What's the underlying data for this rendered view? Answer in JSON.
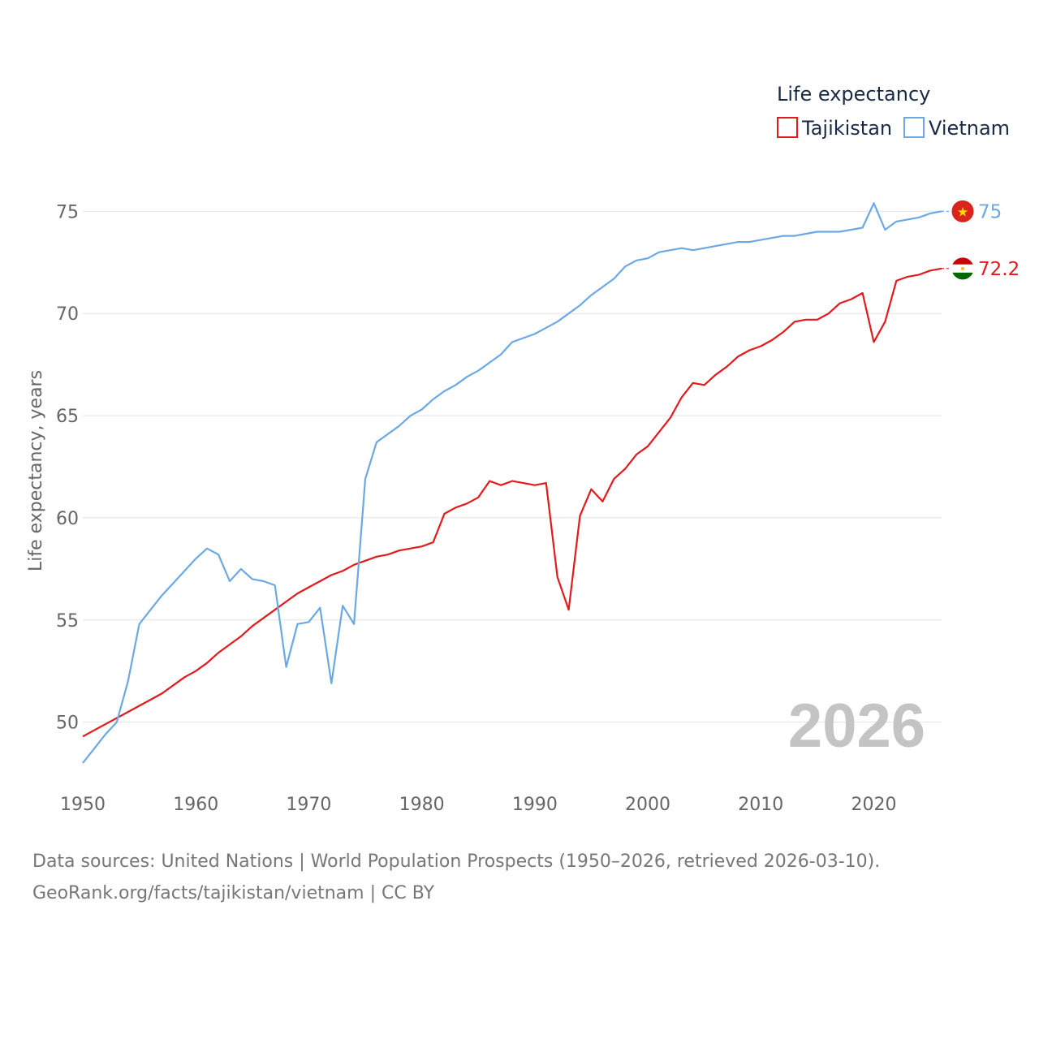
{
  "chart_data": {
    "type": "line",
    "ylabel": "Life expectancy, years",
    "xlabel": "",
    "legend_title": "Life expectancy",
    "legend_position": "top-right",
    "current_year_label": "2026",
    "xlim": [
      1950,
      2026
    ],
    "ylim": [
      48,
      77
    ],
    "y_ticks": [
      50,
      55,
      60,
      65,
      70,
      75
    ],
    "x_ticks": [
      1950,
      1960,
      1970,
      1980,
      1990,
      2000,
      2010,
      2020
    ],
    "grid": true,
    "x": [
      1950,
      1951,
      1952,
      1953,
      1954,
      1955,
      1956,
      1957,
      1958,
      1959,
      1960,
      1961,
      1962,
      1963,
      1964,
      1965,
      1966,
      1967,
      1968,
      1969,
      1970,
      1971,
      1972,
      1973,
      1974,
      1975,
      1976,
      1977,
      1978,
      1979,
      1980,
      1981,
      1982,
      1983,
      1984,
      1985,
      1986,
      1987,
      1988,
      1989,
      1990,
      1991,
      1992,
      1993,
      1994,
      1995,
      1996,
      1997,
      1998,
      1999,
      2000,
      2001,
      2002,
      2003,
      2004,
      2005,
      2006,
      2007,
      2008,
      2009,
      2010,
      2011,
      2012,
      2013,
      2014,
      2015,
      2016,
      2017,
      2018,
      2019,
      2020,
      2021,
      2022,
      2023,
      2024,
      2025,
      2026
    ],
    "series": [
      {
        "name": "Tajikistan",
        "color": "#e31a1c",
        "end_value_label": "72.2",
        "flag_icon": "flag-tajikistan-icon",
        "values": [
          49.3,
          49.6,
          49.9,
          50.2,
          50.5,
          50.8,
          51.1,
          51.4,
          51.8,
          52.2,
          52.5,
          52.9,
          53.4,
          53.8,
          54.2,
          54.7,
          55.1,
          55.5,
          55.9,
          56.3,
          56.6,
          56.9,
          57.2,
          57.4,
          57.7,
          57.9,
          58.1,
          58.2,
          58.4,
          58.5,
          58.6,
          58.8,
          60.2,
          60.5,
          60.7,
          61.0,
          61.8,
          61.6,
          61.8,
          61.7,
          61.6,
          61.7,
          57.1,
          55.5,
          60.1,
          61.4,
          60.8,
          61.9,
          62.4,
          63.1,
          63.5,
          64.2,
          64.9,
          65.9,
          66.6,
          66.5,
          67.0,
          67.4,
          67.9,
          68.2,
          68.4,
          68.7,
          69.1,
          69.6,
          69.7,
          69.7,
          70.0,
          70.5,
          70.7,
          71.0,
          68.6,
          69.6,
          71.6,
          71.8,
          71.9,
          72.1,
          72.2
        ]
      },
      {
        "name": "Vietnam",
        "color": "#6aa9e4",
        "end_value_label": "75",
        "flag_icon": "flag-vietnam-icon",
        "values": [
          48.0,
          48.7,
          49.4,
          50.0,
          52.0,
          54.8,
          55.5,
          56.2,
          56.8,
          57.4,
          58.0,
          58.5,
          58.2,
          56.9,
          57.5,
          57.0,
          56.9,
          56.7,
          52.7,
          54.8,
          54.9,
          55.6,
          51.9,
          55.7,
          54.8,
          61.9,
          63.7,
          64.1,
          64.5,
          65.0,
          65.3,
          65.8,
          66.2,
          66.5,
          66.9,
          67.2,
          67.6,
          68.0,
          68.6,
          68.8,
          69.0,
          69.3,
          69.6,
          70.0,
          70.4,
          70.9,
          71.3,
          71.7,
          72.3,
          72.6,
          72.7,
          73.0,
          73.1,
          73.2,
          73.1,
          73.2,
          73.3,
          73.4,
          73.5,
          73.5,
          73.6,
          73.7,
          73.8,
          73.8,
          73.9,
          74.0,
          74.0,
          74.0,
          74.1,
          74.2,
          75.4,
          74.1,
          74.5,
          74.6,
          74.7,
          74.9,
          75.0
        ]
      }
    ]
  },
  "footer": {
    "line1": "Data sources: United Nations | World Population Prospects (1950–2026, retrieved 2026-03-10).",
    "line2": "GeoRank.org/facts/tajikistan/vietnam | CC BY"
  }
}
